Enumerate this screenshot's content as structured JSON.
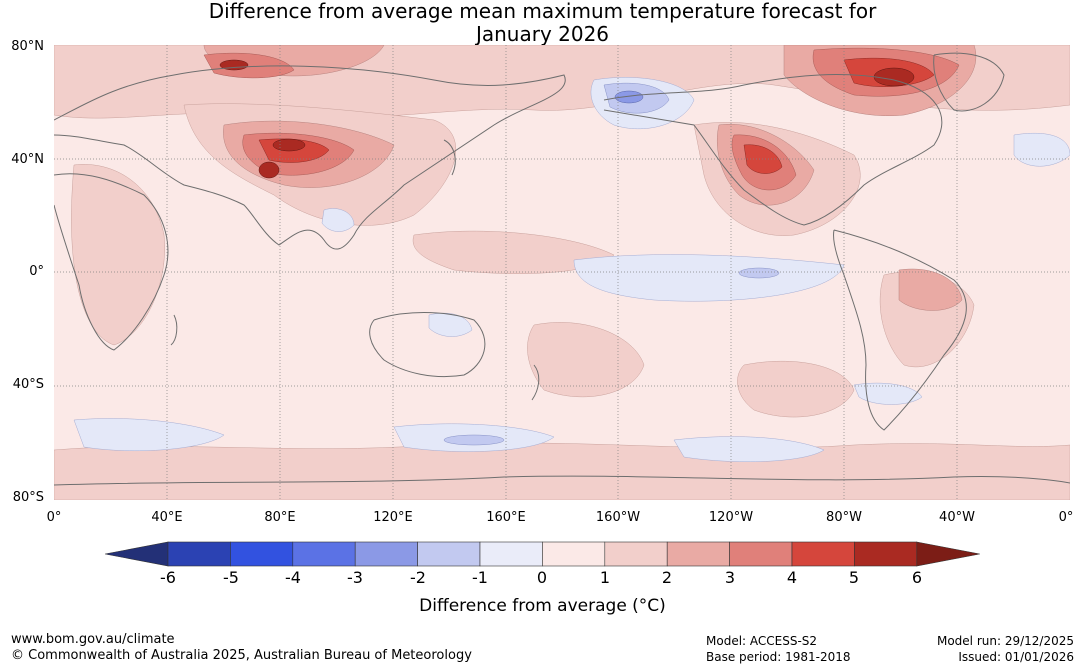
{
  "title": {
    "line1": "Difference from average mean maximum temperature forecast for",
    "line2": "January 2026"
  },
  "map": {
    "latitude_labels": [
      "80°N",
      "40°N",
      "0°",
      "40°S",
      "80°S"
    ],
    "longitude_labels": [
      "0°",
      "40°E",
      "80°E",
      "120°E",
      "160°E",
      "160°W",
      "120°W",
      "80°W",
      "40°W",
      "0°"
    ],
    "colors": {
      "ocean_neutral": "#fbe9e7",
      "warm_1": "#f2cfcb",
      "warm_2": "#e9aaa4",
      "warm_3": "#e0807a",
      "warm_4": "#d5463c",
      "warm_5": "#aa2a22",
      "warm_6": "#7c1d16",
      "cool_1": "#e4e8f8",
      "cool_2": "#c2c9f0",
      "cool_3": "#8b99e6",
      "coast": "#6e6e6e"
    }
  },
  "colorbar": {
    "ticks": [
      "-6",
      "-5",
      "-4",
      "-3",
      "-2",
      "-1",
      "0",
      "1",
      "2",
      "3",
      "4",
      "5",
      "6"
    ],
    "colors": [
      "#233077",
      "#2b42b3",
      "#3252e0",
      "#5b72e5",
      "#8b99e6",
      "#c2c9f0",
      "#eaecf9",
      "#fbe9e7",
      "#f2cfcb",
      "#e9aaa4",
      "#e0807a",
      "#d5463c",
      "#aa2a22",
      "#7c1d16"
    ],
    "label": "Difference from average (°C)"
  },
  "footer": {
    "website": "www.bom.gov.au/climate",
    "copyright": "© Commonwealth of Australia 2025, Australian Bureau of Meteorology",
    "model": "Model: ACCESS-S2",
    "base_period": "Base period: 1981-2018",
    "model_run": "Model run: 29/12/2025",
    "issued": "Issued: 01/01/2026"
  }
}
